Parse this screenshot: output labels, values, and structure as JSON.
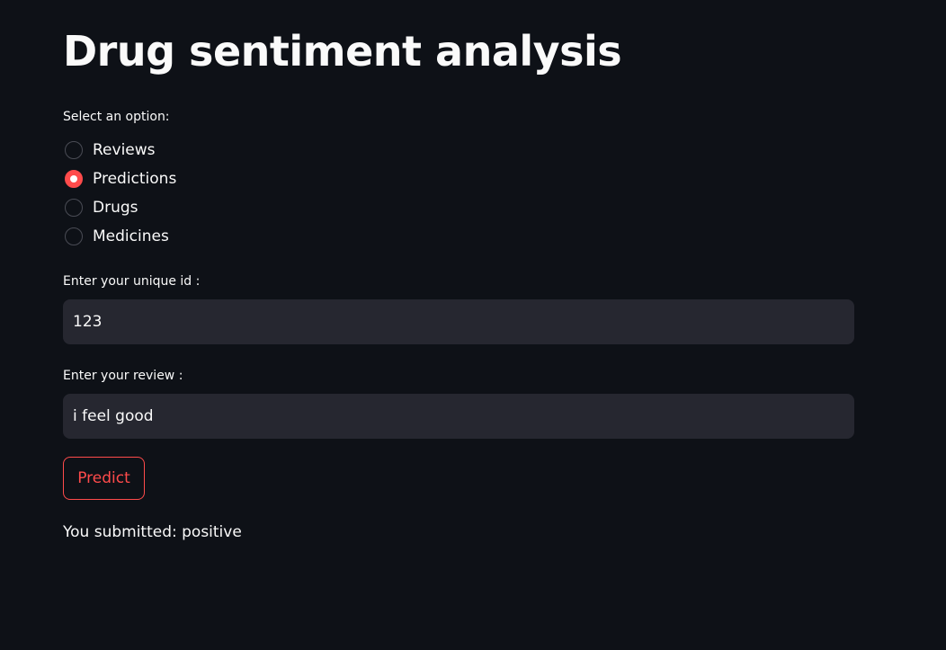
{
  "page": {
    "title": "Drug sentiment analysis"
  },
  "radio": {
    "label": "Select an option:",
    "options": [
      {
        "label": "Reviews",
        "selected": false
      },
      {
        "label": "Predictions",
        "selected": true
      },
      {
        "label": "Drugs",
        "selected": false
      },
      {
        "label": "Medicines",
        "selected": false
      }
    ]
  },
  "unique_id": {
    "label": "Enter your unique id :",
    "value": "123"
  },
  "review": {
    "label": "Enter your review :",
    "value": "i feel good"
  },
  "predict_button": {
    "label": "Predict"
  },
  "result": {
    "text": "You submitted: positive"
  },
  "colors": {
    "background": "#0e1117",
    "accent": "#ff4b4b",
    "input_bg": "#262730",
    "text": "#fafafa"
  }
}
